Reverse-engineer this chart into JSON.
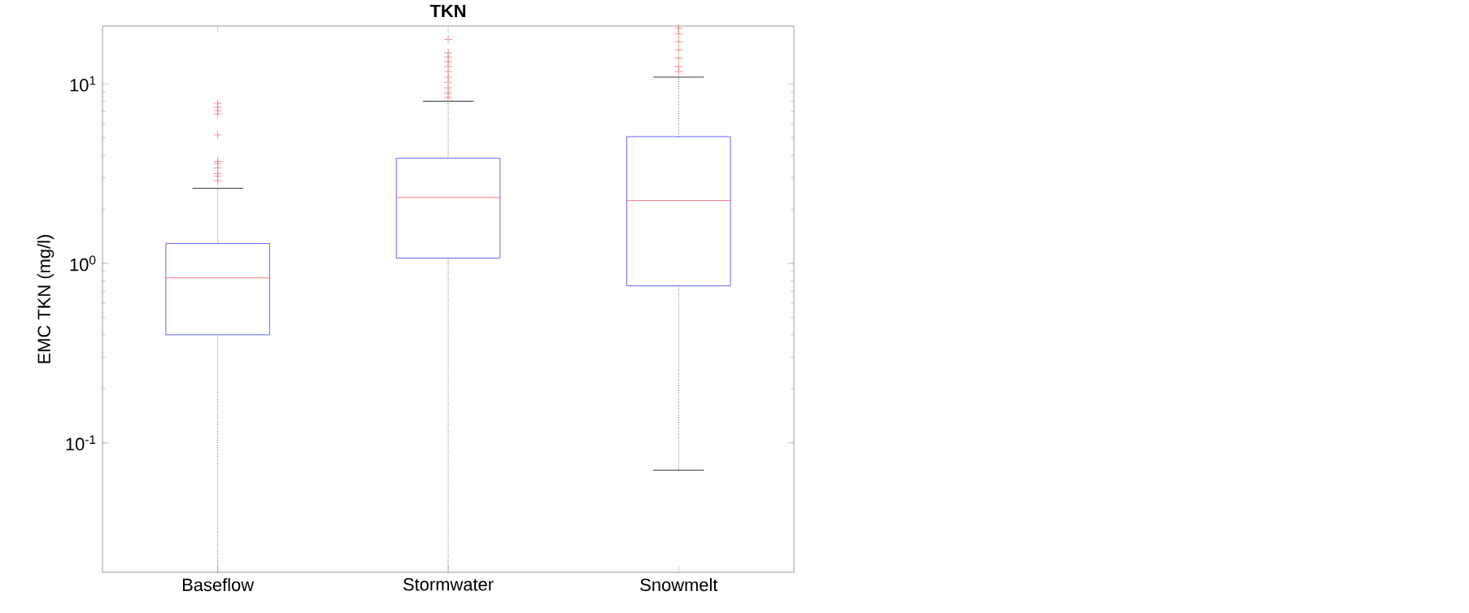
{
  "chart_data": {
    "type": "box",
    "title": "TKN",
    "ylabel": "EMC TKN (mg/l)",
    "categories": [
      "Baseflow",
      "Stormwater",
      "Snowmelt"
    ],
    "color": "#4040ff",
    "log": true,
    "ylim": [
      0.019,
      21
    ],
    "yticks": [
      {
        "value": 0.1,
        "label": "10$^{-1}$"
      },
      {
        "value": 1,
        "label": "10$^{0}$"
      },
      {
        "value": 10,
        "label": "10$^{1}$"
      }
    ],
    "boxes": [
      {
        "low": 0.019,
        "q1": 0.4,
        "median": 0.83,
        "q3": 1.29,
        "high": 2.62,
        "outliers": [
          7.8,
          7.4,
          7.1,
          6.8,
          5.2,
          3.7,
          3.6,
          3.4,
          3.16,
          3.06,
          2.88
        ]
      },
      {
        "low": 0.019,
        "q1": 1.07,
        "median": 2.33,
        "q3": 3.85,
        "high": 8.0,
        "outliers": [
          17.7,
          14.9,
          14.1,
          13.3,
          12.5,
          11.7,
          10.9,
          10.2,
          9.5,
          8.9,
          8.4
        ]
      },
      {
        "low": 0.0705,
        "q1": 0.75,
        "median": 2.24,
        "q3": 5.08,
        "high": 10.9,
        "outliers": [
          20.4,
          19.0,
          17.2,
          15.5,
          13.9,
          12.5,
          11.7
        ]
      }
    ]
  }
}
